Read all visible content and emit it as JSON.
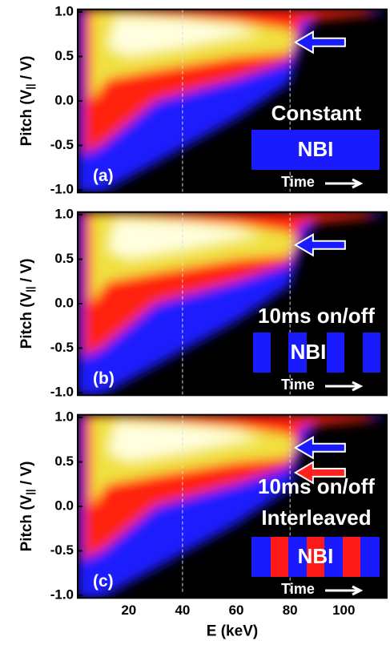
{
  "chart_data": [
    {
      "type": "heatmap",
      "panel_label": "(a)",
      "ylabel": [
        "Pitch (V",
        "||",
        " / V)"
      ],
      "xlim": [
        1,
        116
      ],
      "ylim": [
        -1.03,
        1.03
      ],
      "yticks": [
        {
          "value": -1,
          "label": "-1.0"
        },
        -0.5,
        {
          "value": 0,
          "label": "0.0"
        },
        0.5,
        {
          "value": 1,
          "label": "1.0"
        }
      ],
      "vlines": [
        40,
        80
      ],
      "mode_lines": [
        "Constant"
      ],
      "beam_label": "NBI",
      "time_label": "Time"
    },
    {
      "type": "heatmap",
      "panel_label": "(b)",
      "ylabel": [
        "Pitch (V",
        "||",
        " / V)"
      ],
      "xlim": [
        1,
        116
      ],
      "ylim": [
        -1.03,
        1.03
      ],
      "yticks": [
        {
          "value": -1,
          "label": "-1.0"
        },
        -0.5,
        {
          "value": 0,
          "label": "0.0"
        },
        0.5,
        {
          "value": 1,
          "label": "1.0"
        }
      ],
      "vlines": [
        40,
        80
      ],
      "mode_lines": [
        "10ms on/off"
      ],
      "beam_label": "NBI",
      "time_label": "Time"
    },
    {
      "type": "heatmap",
      "panel_label": "(c)",
      "ylabel": [
        "Pitch (V",
        "||",
        " / V)"
      ],
      "xlim": [
        1,
        116
      ],
      "ylim": [
        -1.03,
        1.03
      ],
      "yticks": [
        {
          "value": -1,
          "label": "-1.0"
        },
        -0.5,
        {
          "value": 0,
          "label": "0.0"
        },
        0.5,
        {
          "value": 1,
          "label": "1.0"
        }
      ],
      "xticks": [
        20,
        40,
        60,
        80,
        100
      ],
      "xlabel": "E (keV)",
      "vlines": [
        40,
        80
      ],
      "mode_lines": [
        "10ms on/off",
        "Interleaved"
      ],
      "beam_label": "NBI",
      "time_label": "Time"
    }
  ]
}
